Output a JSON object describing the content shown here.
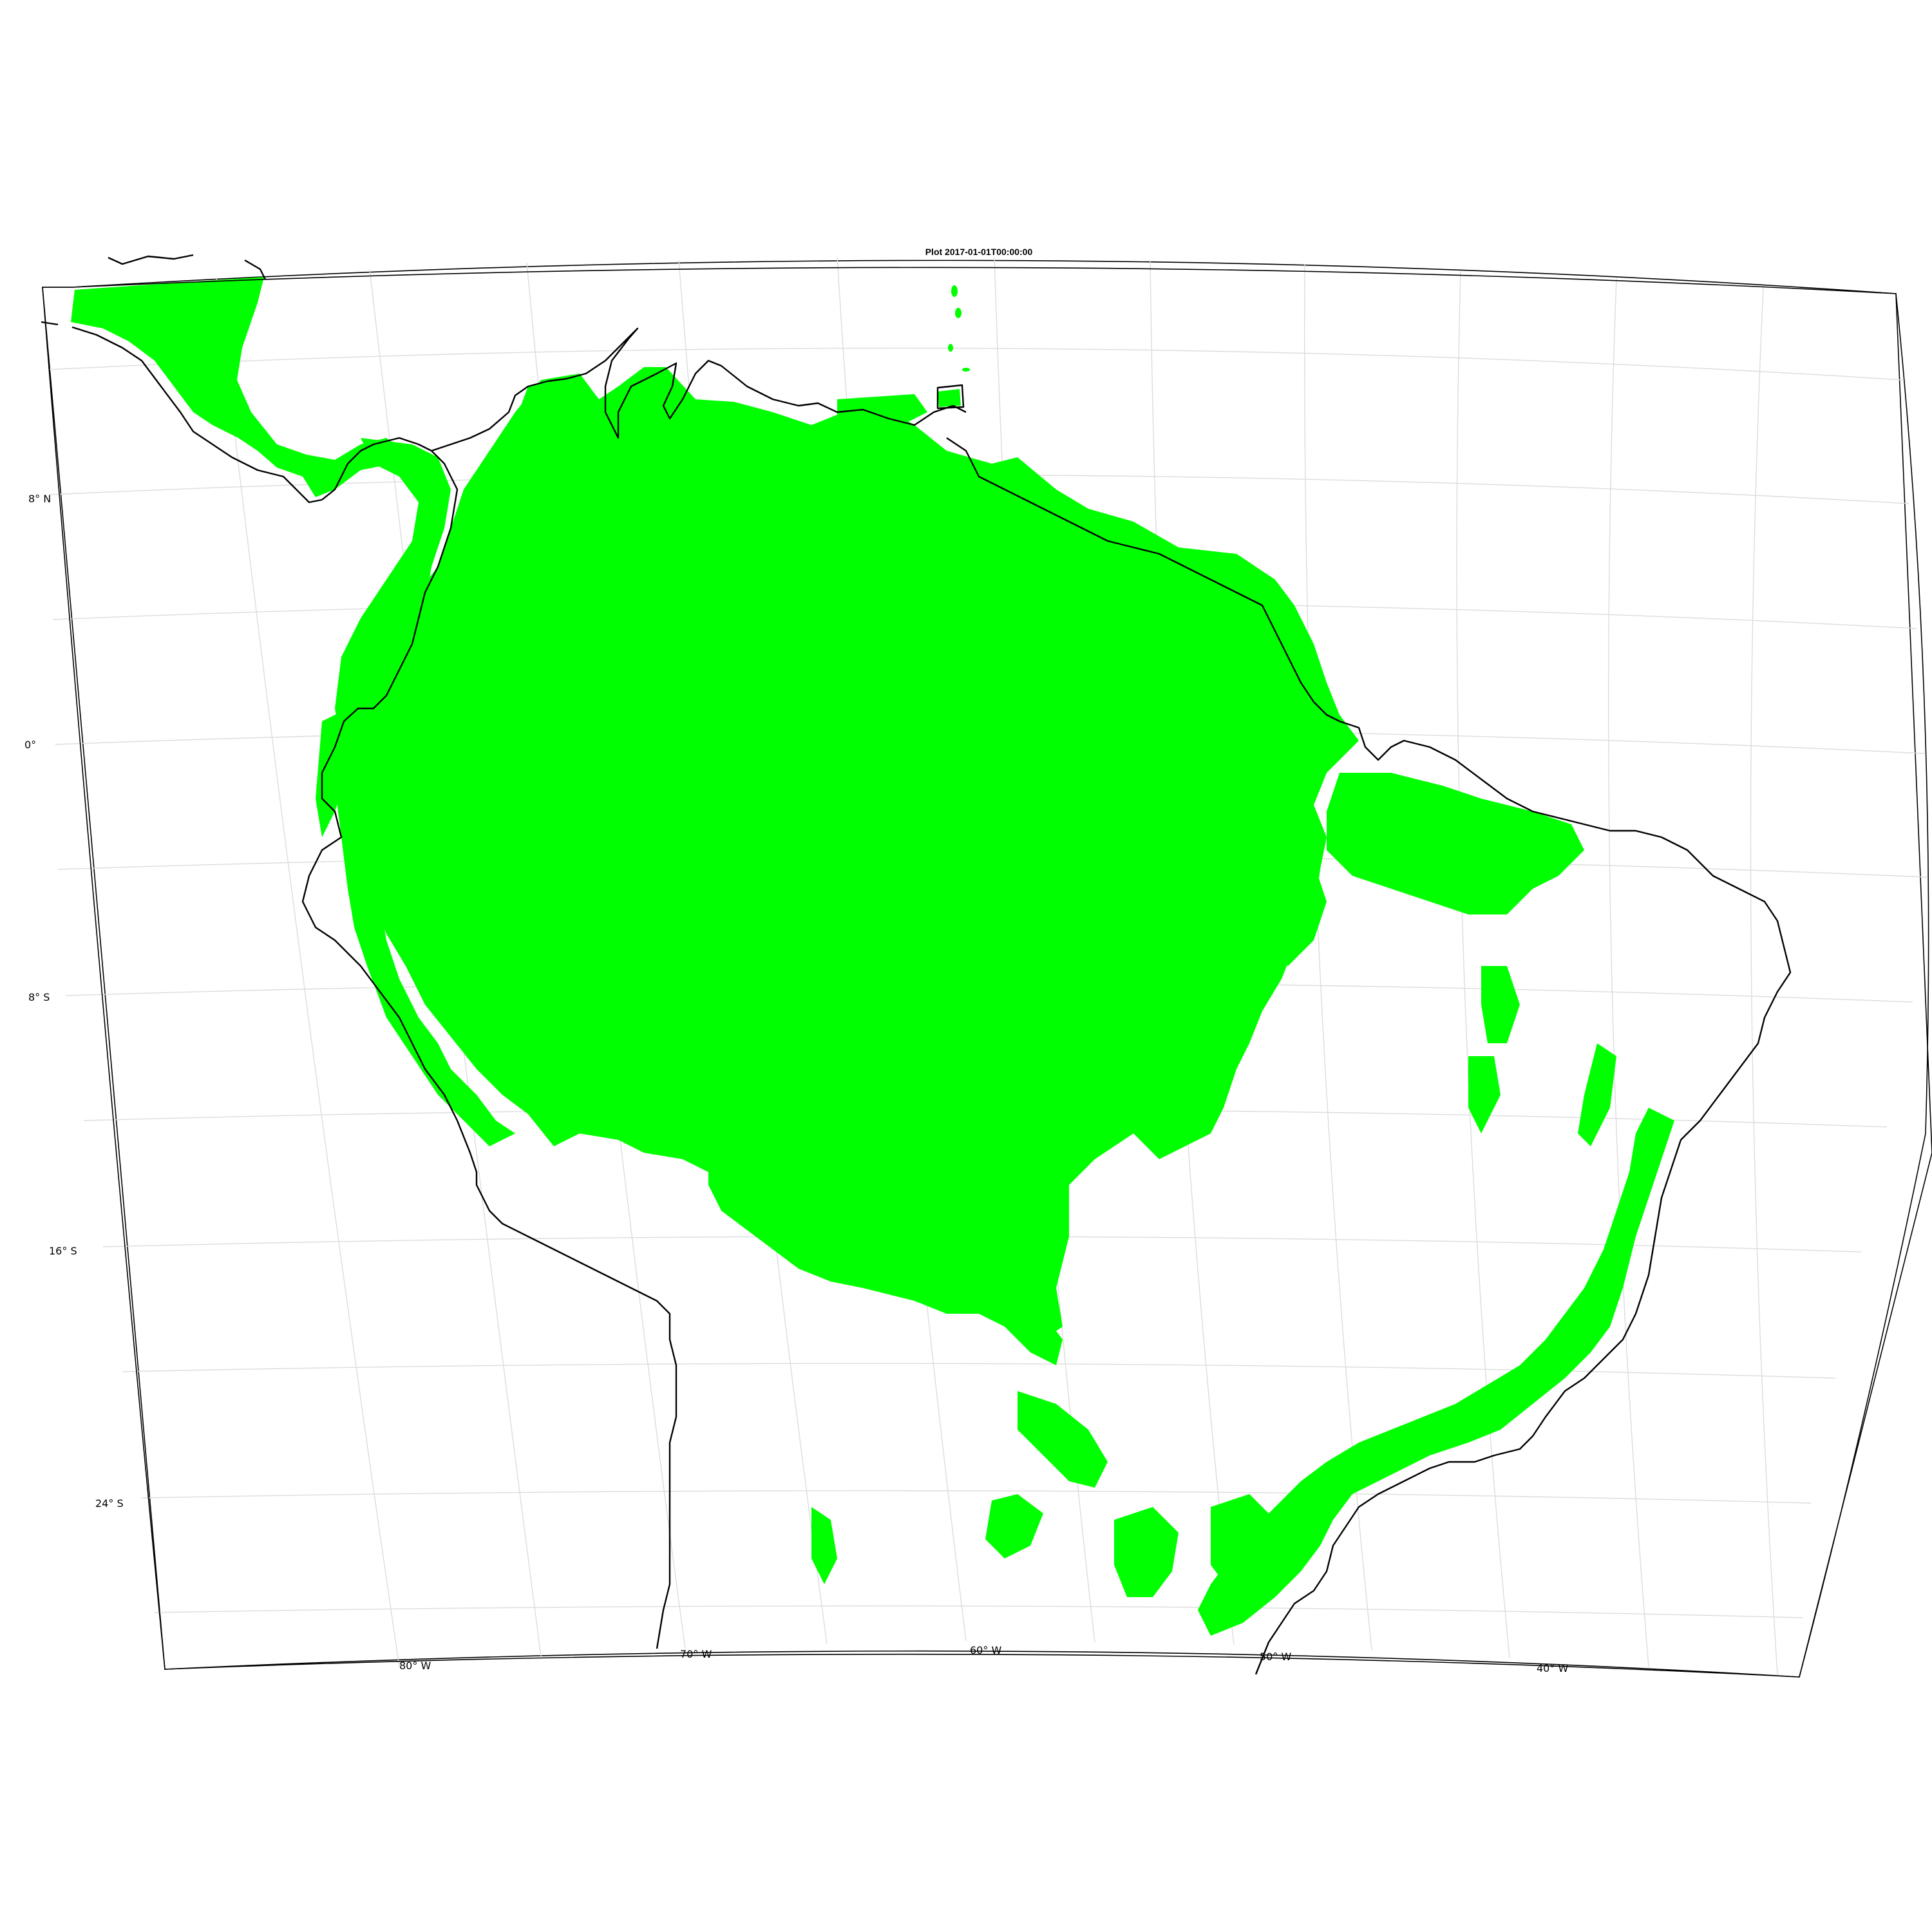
{
  "map": {
    "title": "Plot 2017-01-01T00:00:00",
    "lat_labels": [
      "8° N",
      "0°",
      "8° S",
      "16° S",
      "24° S"
    ],
    "lon_labels": [
      "80° W",
      "70° W",
      "60° W",
      "50° W",
      "40° W"
    ],
    "layer": "vegetation-cover",
    "colors": {
      "vegetation": "#00ff00",
      "coastline": "#000000",
      "graticule": "#dcdcdc",
      "background": "#ffffff"
    },
    "grid": true
  }
}
